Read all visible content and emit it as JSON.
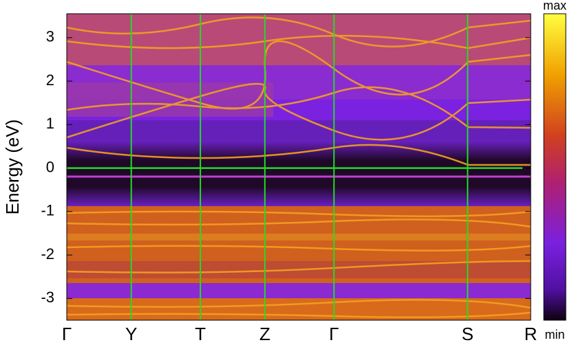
{
  "chart_data": {
    "type": "heatmap",
    "ylabel": "Energy (eV)",
    "ylim": [
      -3.5,
      3.55
    ],
    "yticks": [
      -3,
      -2,
      -1,
      0,
      1,
      2,
      3
    ],
    "xlim": [
      0,
      1
    ],
    "xticks": [
      {
        "value": 0,
        "label": "Γ"
      },
      {
        "value": 0.139,
        "label": "Y"
      },
      {
        "value": 0.288,
        "label": "T"
      },
      {
        "value": 0.427,
        "label": "Z"
      },
      {
        "value": 0.576,
        "label": "Γ"
      },
      {
        "value": 0.864,
        "label": "S"
      },
      {
        "value": 1,
        "label": "R"
      }
    ],
    "hline": 0,
    "line_color": "#22dd22",
    "colorbar_labels": {
      "max": "max",
      "min": "min"
    }
  }
}
